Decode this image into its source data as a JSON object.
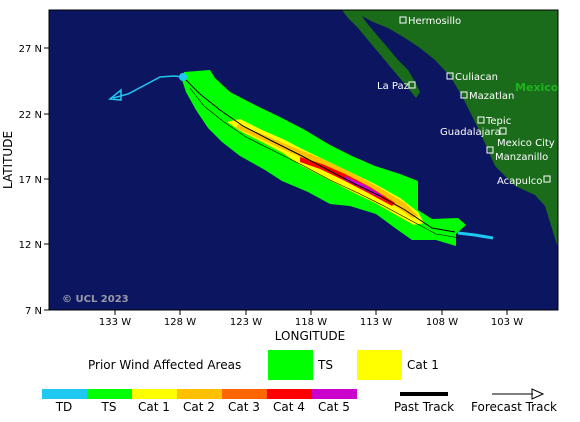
{
  "axes": {
    "xlabel": "LONGITUDE",
    "ylabel": "LATITUDE",
    "lon_ticks": [
      "133 W",
      "128 W",
      "123 W",
      "118 W",
      "113 W",
      "108 W",
      "103 W"
    ],
    "lat_ticks": [
      "27 N",
      "22 N",
      "17 N",
      "12 N",
      "7 N"
    ]
  },
  "map": {
    "country_label": "Mexico",
    "copyright": "© UCL 2023",
    "colors": {
      "ocean": "#0c1660",
      "land": "#1a6b1a",
      "past_track": "#1ec8f0",
      "forecast_track": "#1ec8f0"
    },
    "cities": [
      {
        "name": "Hermosillo"
      },
      {
        "name": "Culiacan"
      },
      {
        "name": "La Paz"
      },
      {
        "name": "Mazatlan"
      },
      {
        "name": "Tepic"
      },
      {
        "name": "Guadalajara"
      },
      {
        "name": "Mexico City"
      },
      {
        "name": "Manzanillo"
      },
      {
        "name": "Acapulco"
      }
    ]
  },
  "legend": {
    "prior_wind_label": "Prior Wind Affected Areas",
    "prior_areas": [
      {
        "label": "TS",
        "color": "#00ff00"
      },
      {
        "label": "Cat 1",
        "color": "#ffff00"
      }
    ],
    "intensity_scale": [
      {
        "label": "TD",
        "color": "#1ec8f0"
      },
      {
        "label": "TS",
        "color": "#00ff00"
      },
      {
        "label": "Cat 1",
        "color": "#ffff00"
      },
      {
        "label": "Cat 2",
        "color": "#ffc000"
      },
      {
        "label": "Cat 3",
        "color": "#ff6600"
      },
      {
        "label": "Cat 4",
        "color": "#ff0000"
      },
      {
        "label": "Cat 5",
        "color": "#cc00cc"
      }
    ],
    "past_track_label": "Past Track",
    "forecast_track_label": "Forecast Track"
  }
}
